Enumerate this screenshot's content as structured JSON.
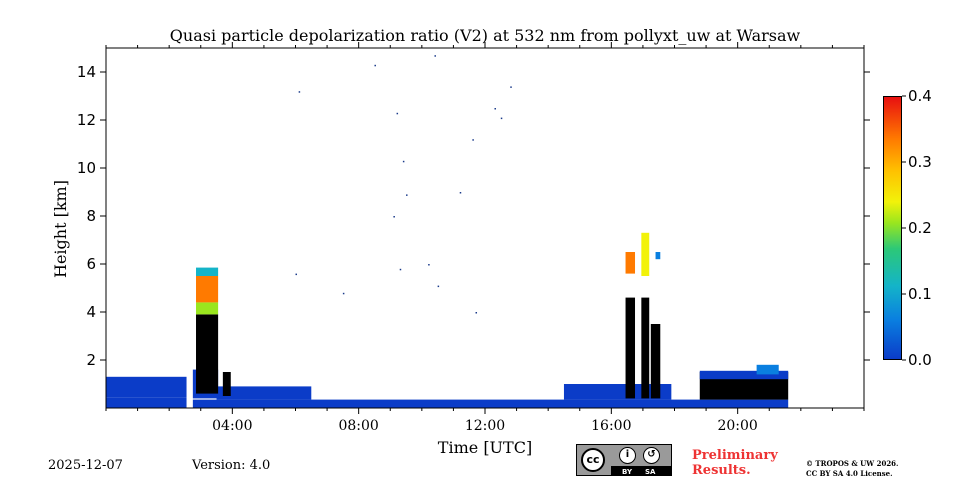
{
  "chart_data": {
    "type": "heatmap",
    "title": "Quasi particle depolarization ratio (V2) at 532 nm from pollyxt_uw at Warsaw",
    "xlabel": "Time [UTC]",
    "ylabel": "Height [km]",
    "xlim_hours": [
      0,
      24
    ],
    "ylim_km": [
      0,
      15
    ],
    "x_ticks": [
      {
        "hour": 4,
        "label": "04:00"
      },
      {
        "hour": 8,
        "label": "08:00"
      },
      {
        "hour": 12,
        "label": "12:00"
      },
      {
        "hour": 16,
        "label": "16:00"
      },
      {
        "hour": 20,
        "label": "20:00"
      }
    ],
    "y_ticks": [
      {
        "km": 2,
        "label": "2"
      },
      {
        "km": 4,
        "label": "4"
      },
      {
        "km": 6,
        "label": "6"
      },
      {
        "km": 8,
        "label": "8"
      },
      {
        "km": 10,
        "label": "10"
      },
      {
        "km": 12,
        "label": "12"
      },
      {
        "km": 14,
        "label": "14"
      }
    ],
    "colorbar": {
      "range": [
        0.0,
        0.4
      ],
      "ticks": [
        {
          "value": 0.0,
          "label": "0.0"
        },
        {
          "value": 0.1,
          "label": "0.1"
        },
        {
          "value": 0.2,
          "label": "0.2"
        },
        {
          "value": 0.3,
          "label": "0.3"
        },
        {
          "value": 0.4,
          "label": "0.4"
        }
      ]
    },
    "patches": [
      {
        "t0": 0.0,
        "t1": 2.55,
        "h0": 0.0,
        "h1": 0.45,
        "value": 0.01
      },
      {
        "t0": 0.0,
        "t1": 2.55,
        "h0": 0.45,
        "h1": 1.3,
        "value": 0.03
      },
      {
        "t0": 2.75,
        "t1": 21.6,
        "h0": 0.0,
        "h1": 0.35,
        "value": 0.01
      },
      {
        "t0": 3.5,
        "t1": 6.5,
        "h0": 0.35,
        "h1": 0.9,
        "value": 0.02
      },
      {
        "t0": 2.75,
        "t1": 3.55,
        "h0": 0.4,
        "h1": 1.6,
        "value": 0.02
      },
      {
        "t0": 2.85,
        "t1": 3.55,
        "h0": 0.6,
        "h1": 3.9,
        "value": -0.05
      },
      {
        "t0": 2.85,
        "t1": 3.55,
        "h0": 3.9,
        "h1": 4.4,
        "value": 0.22
      },
      {
        "t0": 2.85,
        "t1": 3.55,
        "h0": 4.4,
        "h1": 5.5,
        "value": 0.38
      },
      {
        "t0": 2.85,
        "t1": 3.55,
        "h0": 5.5,
        "h1": 5.85,
        "value": 0.12
      },
      {
        "t0": 3.7,
        "t1": 3.95,
        "h0": 0.5,
        "h1": 1.5,
        "value": -0.05
      },
      {
        "t0": 14.5,
        "t1": 17.9,
        "h0": 0.35,
        "h1": 1.0,
        "value": 0.02
      },
      {
        "t0": 16.45,
        "t1": 16.75,
        "h0": 0.4,
        "h1": 4.6,
        "value": -0.05
      },
      {
        "t0": 16.45,
        "t1": 16.75,
        "h0": 5.6,
        "h1": 6.5,
        "value": 0.36
      },
      {
        "t0": 16.95,
        "t1": 17.2,
        "h0": 0.4,
        "h1": 4.6,
        "value": -0.05
      },
      {
        "t0": 16.95,
        "t1": 17.2,
        "h0": 5.5,
        "h1": 7.3,
        "value": 0.28
      },
      {
        "t0": 17.25,
        "t1": 17.55,
        "h0": 0.4,
        "h1": 3.5,
        "value": -0.05
      },
      {
        "t0": 17.4,
        "t1": 17.55,
        "h0": 6.2,
        "h1": 6.5,
        "value": 0.1
      },
      {
        "t0": 18.8,
        "t1": 21.6,
        "h0": 0.35,
        "h1": 1.5,
        "value": -0.05
      },
      {
        "t0": 18.8,
        "t1": 21.6,
        "h0": 1.2,
        "h1": 1.55,
        "value": 0.02
      },
      {
        "t0": 20.6,
        "t1": 21.3,
        "h0": 1.4,
        "h1": 1.8,
        "value": 0.1
      }
    ],
    "speckles": [
      {
        "t": 8.5,
        "h": 14.3
      },
      {
        "t": 10.4,
        "h": 14.7
      },
      {
        "t": 6.1,
        "h": 13.2
      },
      {
        "t": 12.3,
        "h": 12.5
      },
      {
        "t": 12.8,
        "h": 13.4
      },
      {
        "t": 9.2,
        "h": 12.3
      },
      {
        "t": 11.6,
        "h": 11.2
      },
      {
        "t": 9.4,
        "h": 10.3
      },
      {
        "t": 9.5,
        "h": 8.9
      },
      {
        "t": 11.2,
        "h": 9.0
      },
      {
        "t": 9.1,
        "h": 8.0
      },
      {
        "t": 12.5,
        "h": 12.1
      },
      {
        "t": 6.0,
        "h": 5.6
      },
      {
        "t": 7.5,
        "h": 4.8
      },
      {
        "t": 9.3,
        "h": 5.8
      },
      {
        "t": 10.2,
        "h": 6.0
      },
      {
        "t": 11.7,
        "h": 4.0
      },
      {
        "t": 10.5,
        "h": 5.1
      }
    ]
  },
  "footer": {
    "date": "2025-12-07",
    "version": "Version: 4.0",
    "preliminary_line1": "Preliminary",
    "preliminary_line2": "Results.",
    "license_line1": "© TROPOS & UW 2026.",
    "license_line2": "CC BY SA 4.0 License.",
    "badge_cc": "cc",
    "badge_by": "BY",
    "badge_sa": "SA"
  },
  "colors": {
    "no_data": "#ffffff",
    "negative": "#000000"
  }
}
